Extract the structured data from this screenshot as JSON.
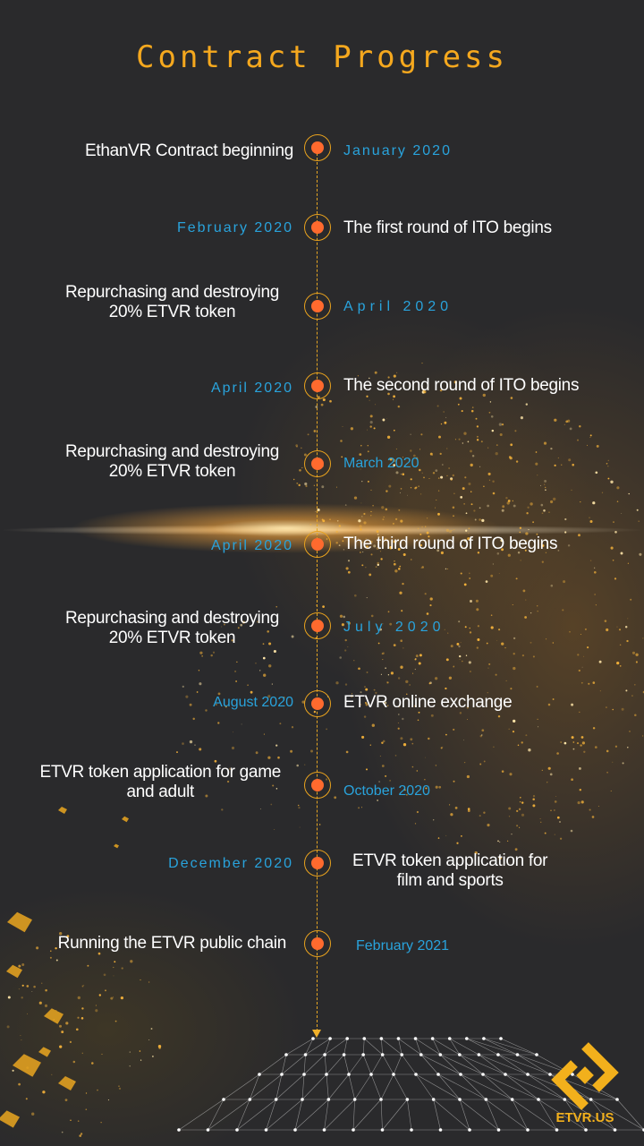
{
  "title": "Contract Progress",
  "colors": {
    "accent": "#f5a81e",
    "date": "#29a3dc",
    "node_dot": "#ff6a2e",
    "background": "#2a2a2c"
  },
  "events": [
    {
      "date": "January 2020",
      "text": "EthanVR  Contract  beginning"
    },
    {
      "date": "February 2020",
      "text": "The first round of ITO begins"
    },
    {
      "date": "April  2020",
      "text": "Repurchasing and destroying\n20% ETVR token"
    },
    {
      "date": "April 2020",
      "text": "The second round of ITO begins"
    },
    {
      "date": "March 2020",
      "text": "Repurchasing and destroying\n20% ETVR token"
    },
    {
      "date": "April 2020",
      "text": "The third round of ITO begins"
    },
    {
      "date": "July  2020",
      "text": "Repurchasing and destroying\n20% ETVR token"
    },
    {
      "date": "August 2020",
      "text": "ETVR  online  exchange"
    },
    {
      "date": "October 2020",
      "text": "ETVR token application for game\nand adult"
    },
    {
      "date": "December 2020",
      "text": "ETVR token application for\nfilm and sports"
    },
    {
      "date": "February 2021",
      "text": "Running the ETVR public chain"
    }
  ],
  "logo": {
    "text": "ETVR.US",
    "icon": "etvr-logo-icon"
  }
}
